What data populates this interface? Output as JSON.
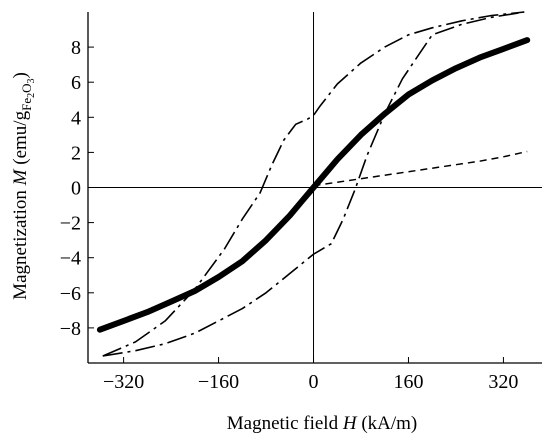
{
  "chart_data": {
    "type": "line",
    "title": "",
    "xlabel": {
      "text": "Magnetic field ",
      "italic": "H",
      "unit": " (kA/m)"
    },
    "ylabel": {
      "text": "Magnetization ",
      "italic": "M",
      "unit_open": " (emu/g",
      "sub": "Fe",
      "subsub": "2",
      "sub2": "O",
      "subsub2": "3",
      "unit_close": ")"
    },
    "xlim": [
      -380,
      385
    ],
    "ylim": [
      -10,
      10
    ],
    "x_ticks": [
      -320,
      -160,
      0,
      160,
      320
    ],
    "x_tick_labels": [
      "−320",
      "−160",
      "0",
      "160",
      "320"
    ],
    "y_ticks": [
      -8,
      -6,
      -4,
      -2,
      0,
      2,
      4,
      6,
      8
    ],
    "y_tick_labels": [
      "−8",
      "−6",
      "−4",
      "−2",
      "0",
      "2",
      "4",
      "6",
      "8"
    ],
    "grid": false,
    "series": [
      {
        "style": "solid-thick",
        "color": "#000000",
        "x": [
          -360,
          -320,
          -280,
          -240,
          -200,
          -160,
          -120,
          -80,
          -40,
          -20,
          0,
          20,
          40,
          80,
          120,
          160,
          200,
          240,
          280,
          320,
          360
        ],
        "y": [
          -8.1,
          -7.6,
          -7.1,
          -6.5,
          -5.9,
          -5.1,
          -4.2,
          -3.0,
          -1.6,
          -0.8,
          0.0,
          0.8,
          1.6,
          3.0,
          4.2,
          5.3,
          6.1,
          6.8,
          7.4,
          7.9,
          8.4
        ]
      },
      {
        "style": "dash-dot",
        "color": "#000000",
        "x": [
          -355,
          -300,
          -250,
          -200,
          -150,
          -120,
          -90,
          -70,
          -50,
          -30,
          -10,
          0,
          10,
          40,
          80,
          120,
          160,
          200,
          250,
          300,
          355
        ],
        "y": [
          -9.6,
          -8.8,
          -7.6,
          -5.8,
          -3.5,
          -1.8,
          -0.3,
          1.3,
          2.7,
          3.6,
          3.9,
          4.1,
          4.6,
          5.9,
          7.1,
          8.0,
          8.7,
          9.1,
          9.5,
          9.8,
          10.0
        ]
      },
      {
        "style": "dash-dot",
        "color": "#000000",
        "x": [
          -355,
          -300,
          -250,
          -200,
          -160,
          -120,
          -80,
          -40,
          0,
          10,
          30,
          50,
          70,
          90,
          120,
          150,
          200,
          250,
          300,
          355
        ],
        "y": [
          -9.6,
          -9.3,
          -8.9,
          -8.3,
          -7.6,
          -6.9,
          -6.0,
          -4.9,
          -3.8,
          -3.6,
          -3.2,
          -1.8,
          -0.1,
          1.8,
          4.2,
          6.2,
          8.7,
          9.3,
          9.7,
          10.0
        ]
      },
      {
        "style": "dashed",
        "color": "#000000",
        "x": [
          0,
          40,
          80,
          120,
          160,
          200,
          240,
          280,
          320,
          360
        ],
        "y": [
          0.1,
          0.3,
          0.5,
          0.7,
          0.9,
          1.1,
          1.3,
          1.5,
          1.75,
          2.05
        ]
      }
    ]
  }
}
